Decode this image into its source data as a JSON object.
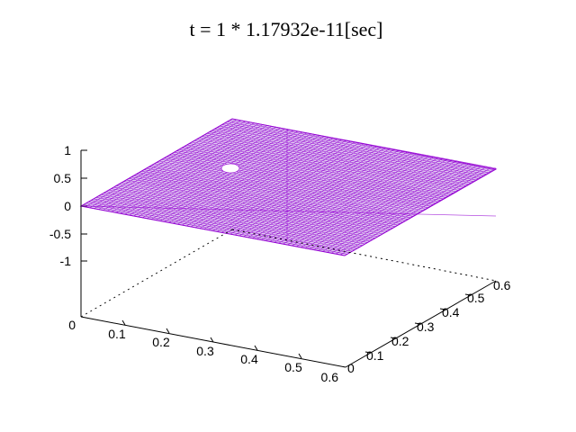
{
  "chart_data": {
    "type": "surface",
    "title": "t = 1 * 1.17932e-11[sec]",
    "xlabel": "",
    "ylabel": "",
    "zlabel": "",
    "x_ticks": [
      "0",
      "0.1",
      "0.2",
      "0.3",
      "0.4",
      "0.5",
      "0.6"
    ],
    "y_ticks": [
      "0",
      "0.1",
      "0.2",
      "0.3",
      "0.4",
      "0.5",
      "0.6"
    ],
    "z_ticks": [
      "1",
      "0.5",
      "0",
      "-0.5",
      "-1"
    ],
    "xlim": [
      0,
      0.6
    ],
    "ylim": [
      0,
      0.6
    ],
    "zlim": [
      -1,
      1
    ],
    "surface": {
      "z_value": 0,
      "description": "flat mesh at z = 0",
      "color": "#9400d3"
    },
    "grid": false,
    "legend": "none"
  }
}
